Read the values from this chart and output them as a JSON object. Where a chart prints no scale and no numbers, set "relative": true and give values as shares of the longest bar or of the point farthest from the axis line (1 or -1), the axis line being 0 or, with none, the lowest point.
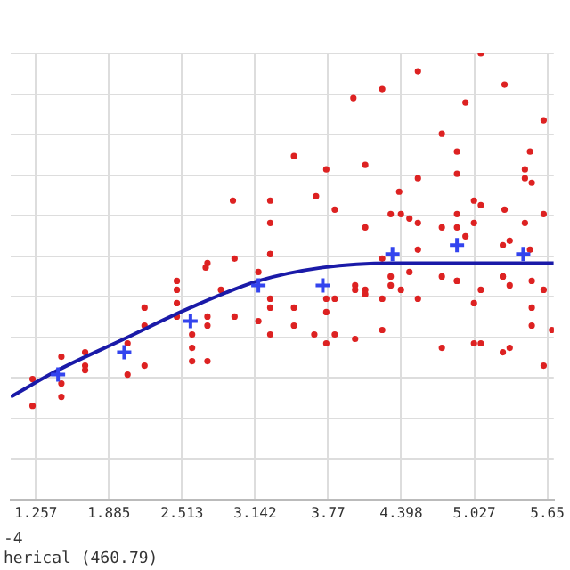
{
  "chart_data": {
    "type": "scatter",
    "relative": true,
    "grid": true,
    "legend": false,
    "xlim": [
      1.04,
      5.71
    ],
    "xticks": [
      1.257,
      1.885,
      2.513,
      3.142,
      3.77,
      4.398,
      5.027,
      {
        "value": 5.655,
        "label": "5.65"
      }
    ],
    "annotations": [
      "-4",
      "herical (460.79)"
    ],
    "series": [
      {
        "marker": "circle",
        "color": "#dd2222",
        "x": [
          1.228,
          1.228,
          1.476,
          1.476,
          1.476,
          1.68,
          1.68,
          1.68,
          2.045,
          2.191,
          2.191,
          2.045,
          2.191,
          2.469,
          2.469,
          2.469,
          2.469,
          2.6,
          2.6,
          2.6,
          2.732,
          2.732,
          2.732,
          2.732,
          2.848,
          2.965,
          2.965,
          3.17,
          3.17,
          3.272,
          3.272,
          3.272,
          3.272,
          2.951,
          3.272,
          3.272,
          2.717,
          3.272,
          5.083,
          4.542,
          3.987,
          4.235,
          5.287,
          5.623,
          4.951,
          4.748,
          3.476,
          4.089,
          3.754,
          4.878,
          4.878,
          5.506,
          5.462,
          5.462,
          5.521,
          4.542,
          4.381,
          3.666,
          3.827,
          5.024,
          5.083,
          5.287,
          5.623,
          4.308,
          4.396,
          4.469,
          4.542,
          4.748,
          4.878,
          4.878,
          4.951,
          5.024,
          4.089,
          5.272,
          5.331,
          5.462,
          5.506,
          4.542,
          4.235,
          4.469,
          4.748,
          4.878,
          5.272,
          5.521,
          3.754,
          3.754,
          3.754,
          3.476,
          3.476,
          3.651,
          3.827,
          3.827,
          4.002,
          4.002,
          4.002,
          4.089,
          4.089,
          4.235,
          4.235,
          4.308,
          4.308,
          4.396,
          4.542,
          4.748,
          4.878,
          5.024,
          5.024,
          5.083,
          5.083,
          5.272,
          5.331,
          5.272,
          5.331,
          5.521,
          5.521,
          5.623,
          5.623,
          5.695
        ],
        "values": [
          0.27,
          0.21,
          0.32,
          0.26,
          0.23,
          0.33,
          0.3,
          0.29,
          0.35,
          0.43,
          0.39,
          0.28,
          0.3,
          0.49,
          0.47,
          0.44,
          0.41,
          0.37,
          0.34,
          0.31,
          0.53,
          0.41,
          0.39,
          0.31,
          0.47,
          0.54,
          0.41,
          0.51,
          0.4,
          0.55,
          0.45,
          0.43,
          0.37,
          0.67,
          0.67,
          0.62,
          0.52,
          0.55,
          1.0,
          0.96,
          0.9,
          0.92,
          0.93,
          0.85,
          0.89,
          0.82,
          0.77,
          0.75,
          0.74,
          0.78,
          0.73,
          0.78,
          0.74,
          0.72,
          0.71,
          0.72,
          0.69,
          0.68,
          0.65,
          0.67,
          0.66,
          0.65,
          0.64,
          0.64,
          0.64,
          0.63,
          0.62,
          0.61,
          0.64,
          0.61,
          0.59,
          0.62,
          0.61,
          0.57,
          0.58,
          0.62,
          0.56,
          0.56,
          0.54,
          0.51,
          0.5,
          0.49,
          0.5,
          0.49,
          0.45,
          0.42,
          0.35,
          0.43,
          0.39,
          0.37,
          0.37,
          0.45,
          0.48,
          0.47,
          0.36,
          0.47,
          0.46,
          0.45,
          0.38,
          0.5,
          0.48,
          0.47,
          0.45,
          0.34,
          0.49,
          0.44,
          0.35,
          0.47,
          0.35,
          0.5,
          0.48,
          0.33,
          0.34,
          0.43,
          0.39,
          0.47,
          0.3,
          0.38
        ]
      },
      {
        "type": "line",
        "marker": "none",
        "color": "#1a1aa8",
        "x": [
          1.04,
          1.447,
          2.016,
          2.586,
          3.17,
          3.724,
          4.323,
          5.71
        ],
        "values": [
          0.23,
          0.29,
          0.36,
          0.43,
          0.49,
          0.52,
          0.53,
          0.53
        ]
      },
      {
        "marker": "cross",
        "color": "#3344ee",
        "x": [
          1.447,
          2.016,
          2.586,
          3.17,
          3.724,
          4.323,
          4.878,
          5.447
        ],
        "values": [
          0.28,
          0.33,
          0.4,
          0.48,
          0.48,
          0.55,
          0.57,
          0.55
        ]
      }
    ]
  }
}
